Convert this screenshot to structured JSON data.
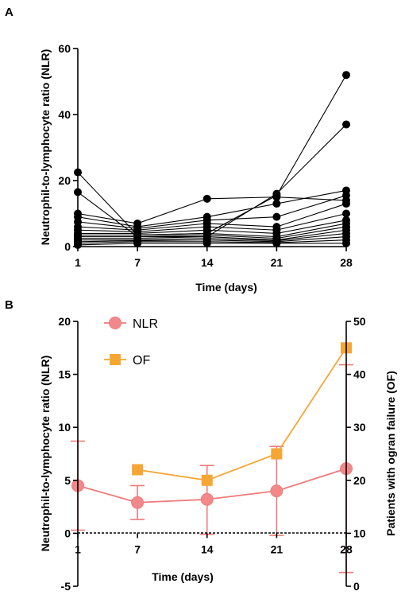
{
  "panel_a": {
    "label": "A",
    "chart_data": {
      "type": "line",
      "title": "",
      "xlabel": "Time (days)",
      "ylabel": "Neutrophil-to-lymphocyte ratio (NLR)",
      "categories": [
        "1",
        "7",
        "14",
        "21",
        "28"
      ],
      "x": [
        1,
        7,
        14,
        21,
        28
      ],
      "xlim": [
        1,
        28
      ],
      "ylim": [
        0,
        60
      ],
      "yticks": [
        "0",
        "20",
        "40",
        "60"
      ],
      "grid": false,
      "series": [
        {
          "values": [
            22.5,
            3.5,
            4,
            15.5,
            52
          ]
        },
        {
          "values": [
            16.5,
            3,
            3,
            16,
            37
          ]
        },
        {
          "values": [
            10,
            7,
            14.5,
            15,
            14
          ]
        },
        {
          "values": [
            9,
            6,
            9,
            13,
            17
          ]
        },
        {
          "values": [
            7.5,
            5.5,
            8,
            9,
            15.5
          ]
        },
        {
          "values": [
            6,
            5,
            7,
            6,
            13
          ]
        },
        {
          "values": [
            5,
            4.5,
            6,
            5,
            10
          ]
        },
        {
          "values": [
            4,
            4,
            5,
            4,
            8
          ]
        },
        {
          "values": [
            3.5,
            3.5,
            4,
            3,
            7
          ]
        },
        {
          "values": [
            3,
            3,
            3.5,
            2.5,
            6
          ]
        },
        {
          "values": [
            2.5,
            2.5,
            3,
            2,
            5
          ]
        },
        {
          "values": [
            2,
            2,
            2.5,
            1.8,
            4
          ]
        },
        {
          "values": [
            1.5,
            1.8,
            2,
            1.5,
            3
          ]
        },
        {
          "values": [
            1,
            1.5,
            1.5,
            1.2,
            2
          ]
        },
        {
          "values": [
            0.5,
            1,
            1,
            1,
            1
          ]
        }
      ]
    }
  },
  "panel_b": {
    "label": "B",
    "chart_data": {
      "type": "line",
      "title": "",
      "xlabel": "Time (days)",
      "ylabel": "Neutrophil-to-lymphocyte ratio (NLR)",
      "ylabel_right": "Patients with ogran failure (OF)",
      "categories": [
        "1",
        "7",
        "14",
        "21",
        "28"
      ],
      "x": [
        1,
        7,
        14,
        21,
        28
      ],
      "xlim": [
        1,
        28
      ],
      "ylim": [
        -5,
        20
      ],
      "yticks": [
        "-5",
        "0",
        "5",
        "10",
        "15",
        "20"
      ],
      "ylim_right": [
        0,
        50
      ],
      "yticks_right": [
        "0",
        "10",
        "20",
        "30",
        "40",
        "50"
      ],
      "grid": false,
      "legend_position": "top-left",
      "series": [
        {
          "name": "NLR",
          "axis": "left",
          "color": "#ee7b7b",
          "marker": "circle",
          "x": [
            1,
            7,
            14,
            21,
            28
          ],
          "values": [
            4.5,
            2.9,
            3.2,
            4.0,
            6.1
          ],
          "error_low": [
            0.3,
            1.3,
            -0.1,
            -0.2,
            -3.7
          ],
          "error_high": [
            8.7,
            4.5,
            6.4,
            8.2,
            15.9
          ]
        },
        {
          "name": "OF",
          "axis": "right",
          "color": "#f5a634",
          "marker": "square",
          "x": [
            7,
            14,
            21,
            28
          ],
          "values": [
            22,
            20,
            25,
            45
          ]
        }
      ]
    }
  }
}
